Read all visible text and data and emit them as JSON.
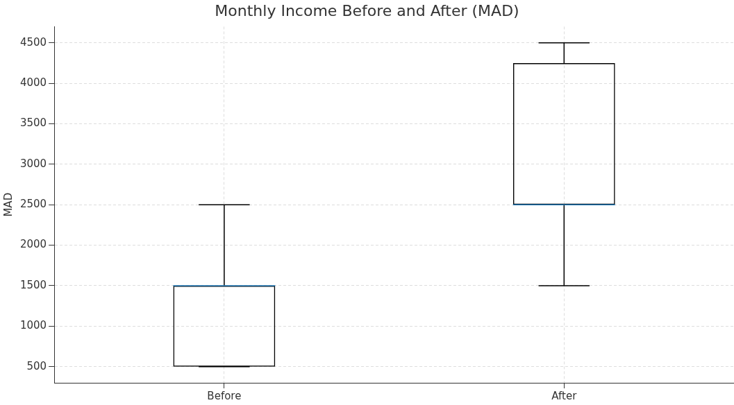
{
  "chart_data": {
    "type": "box",
    "title": "Monthly Income Before and After (MAD)",
    "ylabel": "MAD",
    "categories": [
      "Before",
      "After"
    ],
    "boxes": [
      {
        "low": 500,
        "q1": 500,
        "median": 1500,
        "q3": 1500,
        "high": 2500
      },
      {
        "low": 1500,
        "q1": 2500,
        "median": 2500,
        "q3": 4250,
        "high": 4500
      }
    ],
    "color": "#000000",
    "ylim": [
      300,
      4700
    ],
    "yticks": [
      500,
      1000,
      1500,
      2000,
      2500,
      3000,
      3500,
      4000,
      4500
    ],
    "grid": true,
    "legend": false
  }
}
